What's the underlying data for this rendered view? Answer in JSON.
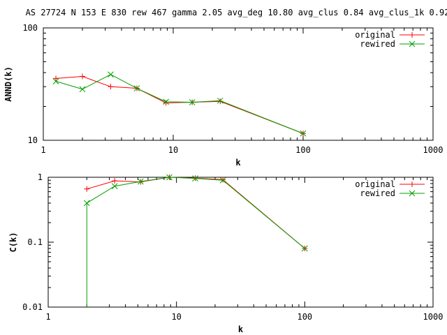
{
  "title": "AS 27724 N 153 E 830 rew 467 gamma 2.05 avg_deg 10.80 avg_clus 0.84 avg_clus_1k 0.92",
  "colors": {
    "original": "#ff0000",
    "rewired": "#00a000",
    "axis": "#000000",
    "background": "#ffffff"
  },
  "chart_data": [
    {
      "type": "line",
      "xlabel": "k",
      "ylabel": "ANND(k)",
      "xscale": "log",
      "yscale": "log",
      "xlim": [
        1,
        1000
      ],
      "ylim": [
        10,
        100
      ],
      "xticks": [
        1,
        10,
        100,
        1000
      ],
      "xtick_labels": [
        "1",
        "10",
        "100",
        "1000"
      ],
      "yticks": [
        10,
        100
      ],
      "ytick_labels": [
        "10",
        "100"
      ],
      "grid": false,
      "legend": "top-right",
      "series": [
        {
          "name": "original",
          "marker": "plus",
          "x": [
            1.25,
            2.0,
            3.3,
            5.25,
            8.8,
            14,
            23,
            100
          ],
          "y": [
            35.5,
            37.0,
            30.0,
            29.0,
            21.5,
            21.8,
            22.2,
            11.5
          ]
        },
        {
          "name": "rewired",
          "marker": "cross",
          "x": [
            1.25,
            2.0,
            3.3,
            5.25,
            8.8,
            14,
            23,
            100
          ],
          "y": [
            33.5,
            28.5,
            38.5,
            29.0,
            22.0,
            21.8,
            22.5,
            11.5
          ]
        }
      ]
    },
    {
      "type": "line",
      "xlabel": "k",
      "ylabel": "C(k)",
      "xscale": "log",
      "yscale": "log",
      "xlim": [
        1,
        1000
      ],
      "ylim": [
        0.01,
        1
      ],
      "xticks": [
        1,
        10,
        100,
        1000
      ],
      "xtick_labels": [
        "1",
        "10",
        "100",
        "1000"
      ],
      "yticks": [
        0.01,
        0.1,
        1
      ],
      "ytick_labels": [
        "0.01",
        "0.1",
        "1"
      ],
      "grid": false,
      "legend": "top-right",
      "series": [
        {
          "name": "original",
          "marker": "plus",
          "x": [
            2.0,
            3.3,
            5.25,
            8.8,
            14,
            23,
            100
          ],
          "y": [
            0.66,
            0.88,
            0.85,
            1.0,
            0.97,
            0.92,
            0.08
          ]
        },
        {
          "name": "rewired",
          "marker": "cross",
          "x": [
            2.0,
            2.0,
            3.3,
            5.25,
            8.8,
            14,
            23,
            100
          ],
          "y": [
            0.01,
            0.4,
            0.73,
            0.86,
            1.0,
            0.96,
            0.9,
            0.08
          ]
        }
      ]
    }
  ]
}
